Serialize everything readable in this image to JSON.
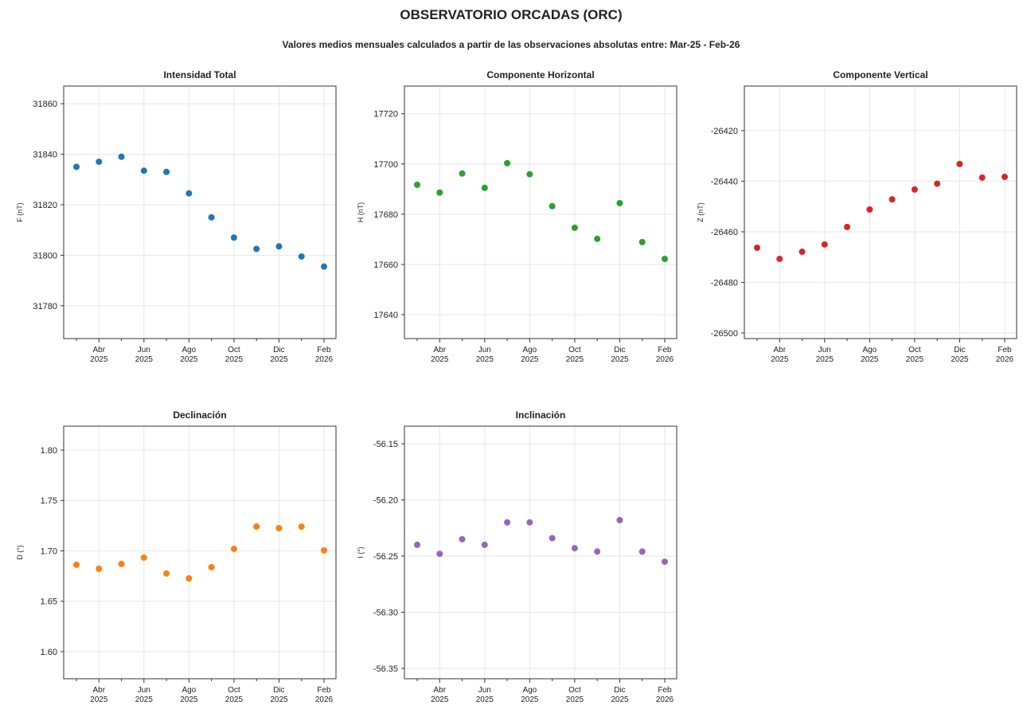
{
  "title": "OBSERVATORIO ORCADAS (ORC)",
  "subtitle": "Valores medios mensuales calculados a partir de las observaciones absolutas entre: Mar-25 - Feb-26",
  "chart_data": [
    {
      "type": "scatter",
      "title": "Intensidad Total",
      "y_label": "F (nT)",
      "color": "#1f77b4",
      "grid": true,
      "categories": [
        null,
        "Abr\n2025",
        null,
        "Jun\n2025",
        null,
        "Ago\n2025",
        null,
        "Oct\n2025",
        null,
        "Dic\n2025",
        null,
        "Feb\n2026"
      ],
      "values": [
        31835,
        31837,
        31839,
        31833.5,
        31833,
        31824.5,
        31815,
        31807,
        31802.5,
        31803.5,
        31799.5,
        31795.5
      ],
      "ylim": [
        31767,
        31867
      ],
      "yticks": [
        31780,
        31800,
        31820,
        31840,
        31860
      ]
    },
    {
      "type": "scatter",
      "title": "Componente Horizontal",
      "y_label": "H (nT)",
      "color": "#2ca02c",
      "grid": true,
      "categories": [
        null,
        "Abr\n2025",
        null,
        "Jun\n2025",
        null,
        "Ago\n2025",
        null,
        "Oct\n2025",
        null,
        "Dic\n2025",
        null,
        "Feb\n2026"
      ],
      "values": [
        17691.7,
        17688.6,
        17696.2,
        17690.5,
        17700.3,
        17695.9,
        17683.2,
        17674.6,
        17670.2,
        17684.4,
        17668.9,
        17662.2
      ],
      "ylim": [
        17630.5,
        17731
      ],
      "yticks": [
        17640,
        17660,
        17680,
        17700,
        17720
      ]
    },
    {
      "type": "scatter",
      "title": "Componente Vertical",
      "y_label": "Z (nT)",
      "color": "#d62728",
      "grid": true,
      "categories": [
        null,
        "Abr\n2025",
        null,
        "Jun\n2025",
        null,
        "Ago\n2025",
        null,
        "Oct\n2025",
        null,
        "Dic\n2025",
        null,
        "Feb\n2026"
      ],
      "values": [
        -26466.3,
        -26470.7,
        -26467.9,
        -26465.0,
        -26458.1,
        -26451.2,
        -26447.2,
        -26443.3,
        -26441.0,
        -26433.2,
        -26438.6,
        -26438.3
      ],
      "ylim": [
        -26502.2,
        -26402.4
      ],
      "yticks": [
        -26500,
        -26480,
        -26460,
        -26440,
        -26420
      ]
    },
    {
      "type": "scatter",
      "title": "Declinación",
      "y_label": "D (°)",
      "color": "#ff7f0e",
      "grid": true,
      "categories": [
        null,
        "Abr\n2025",
        null,
        "Jun\n2025",
        null,
        "Ago\n2025",
        null,
        "Oct\n2025",
        null,
        "Dic\n2025",
        null,
        "Feb\n2026"
      ],
      "values": [
        1.6862,
        1.6822,
        1.687,
        1.6933,
        1.6775,
        1.6727,
        1.6838,
        1.702,
        1.7241,
        1.7225,
        1.7241,
        1.7004
      ],
      "ylim": [
        1.5731,
        1.8237
      ],
      "yticks": [
        {
          "value": 1.6,
          "label": "1.60"
        },
        1.65,
        {
          "value": 1.7,
          "label": "1.70"
        },
        1.75,
        {
          "value": 1.8,
          "label": "1.80"
        }
      ]
    },
    {
      "type": "scatter",
      "title": "Inclinación",
      "y_label": "I (°)",
      "color": "#9467bd",
      "grid": true,
      "categories": [
        null,
        "Abr\n2025",
        null,
        "Jun\n2025",
        null,
        "Ago\n2025",
        null,
        "Oct\n2025",
        null,
        "Dic\n2025",
        null,
        "Feb\n2026"
      ],
      "values": [
        -56.24,
        -56.248,
        -56.235,
        -56.24,
        -56.22,
        -56.22,
        -56.234,
        -56.243,
        -56.246,
        -56.218,
        -56.246,
        -56.255
      ],
      "ylim": [
        -56.3592,
        -56.1344
      ],
      "yticks": [
        -56.35,
        {
          "value": -56.3,
          "label": "-56.30"
        },
        -56.25,
        {
          "value": -56.2,
          "label": "-56.20"
        },
        -56.15
      ]
    }
  ]
}
